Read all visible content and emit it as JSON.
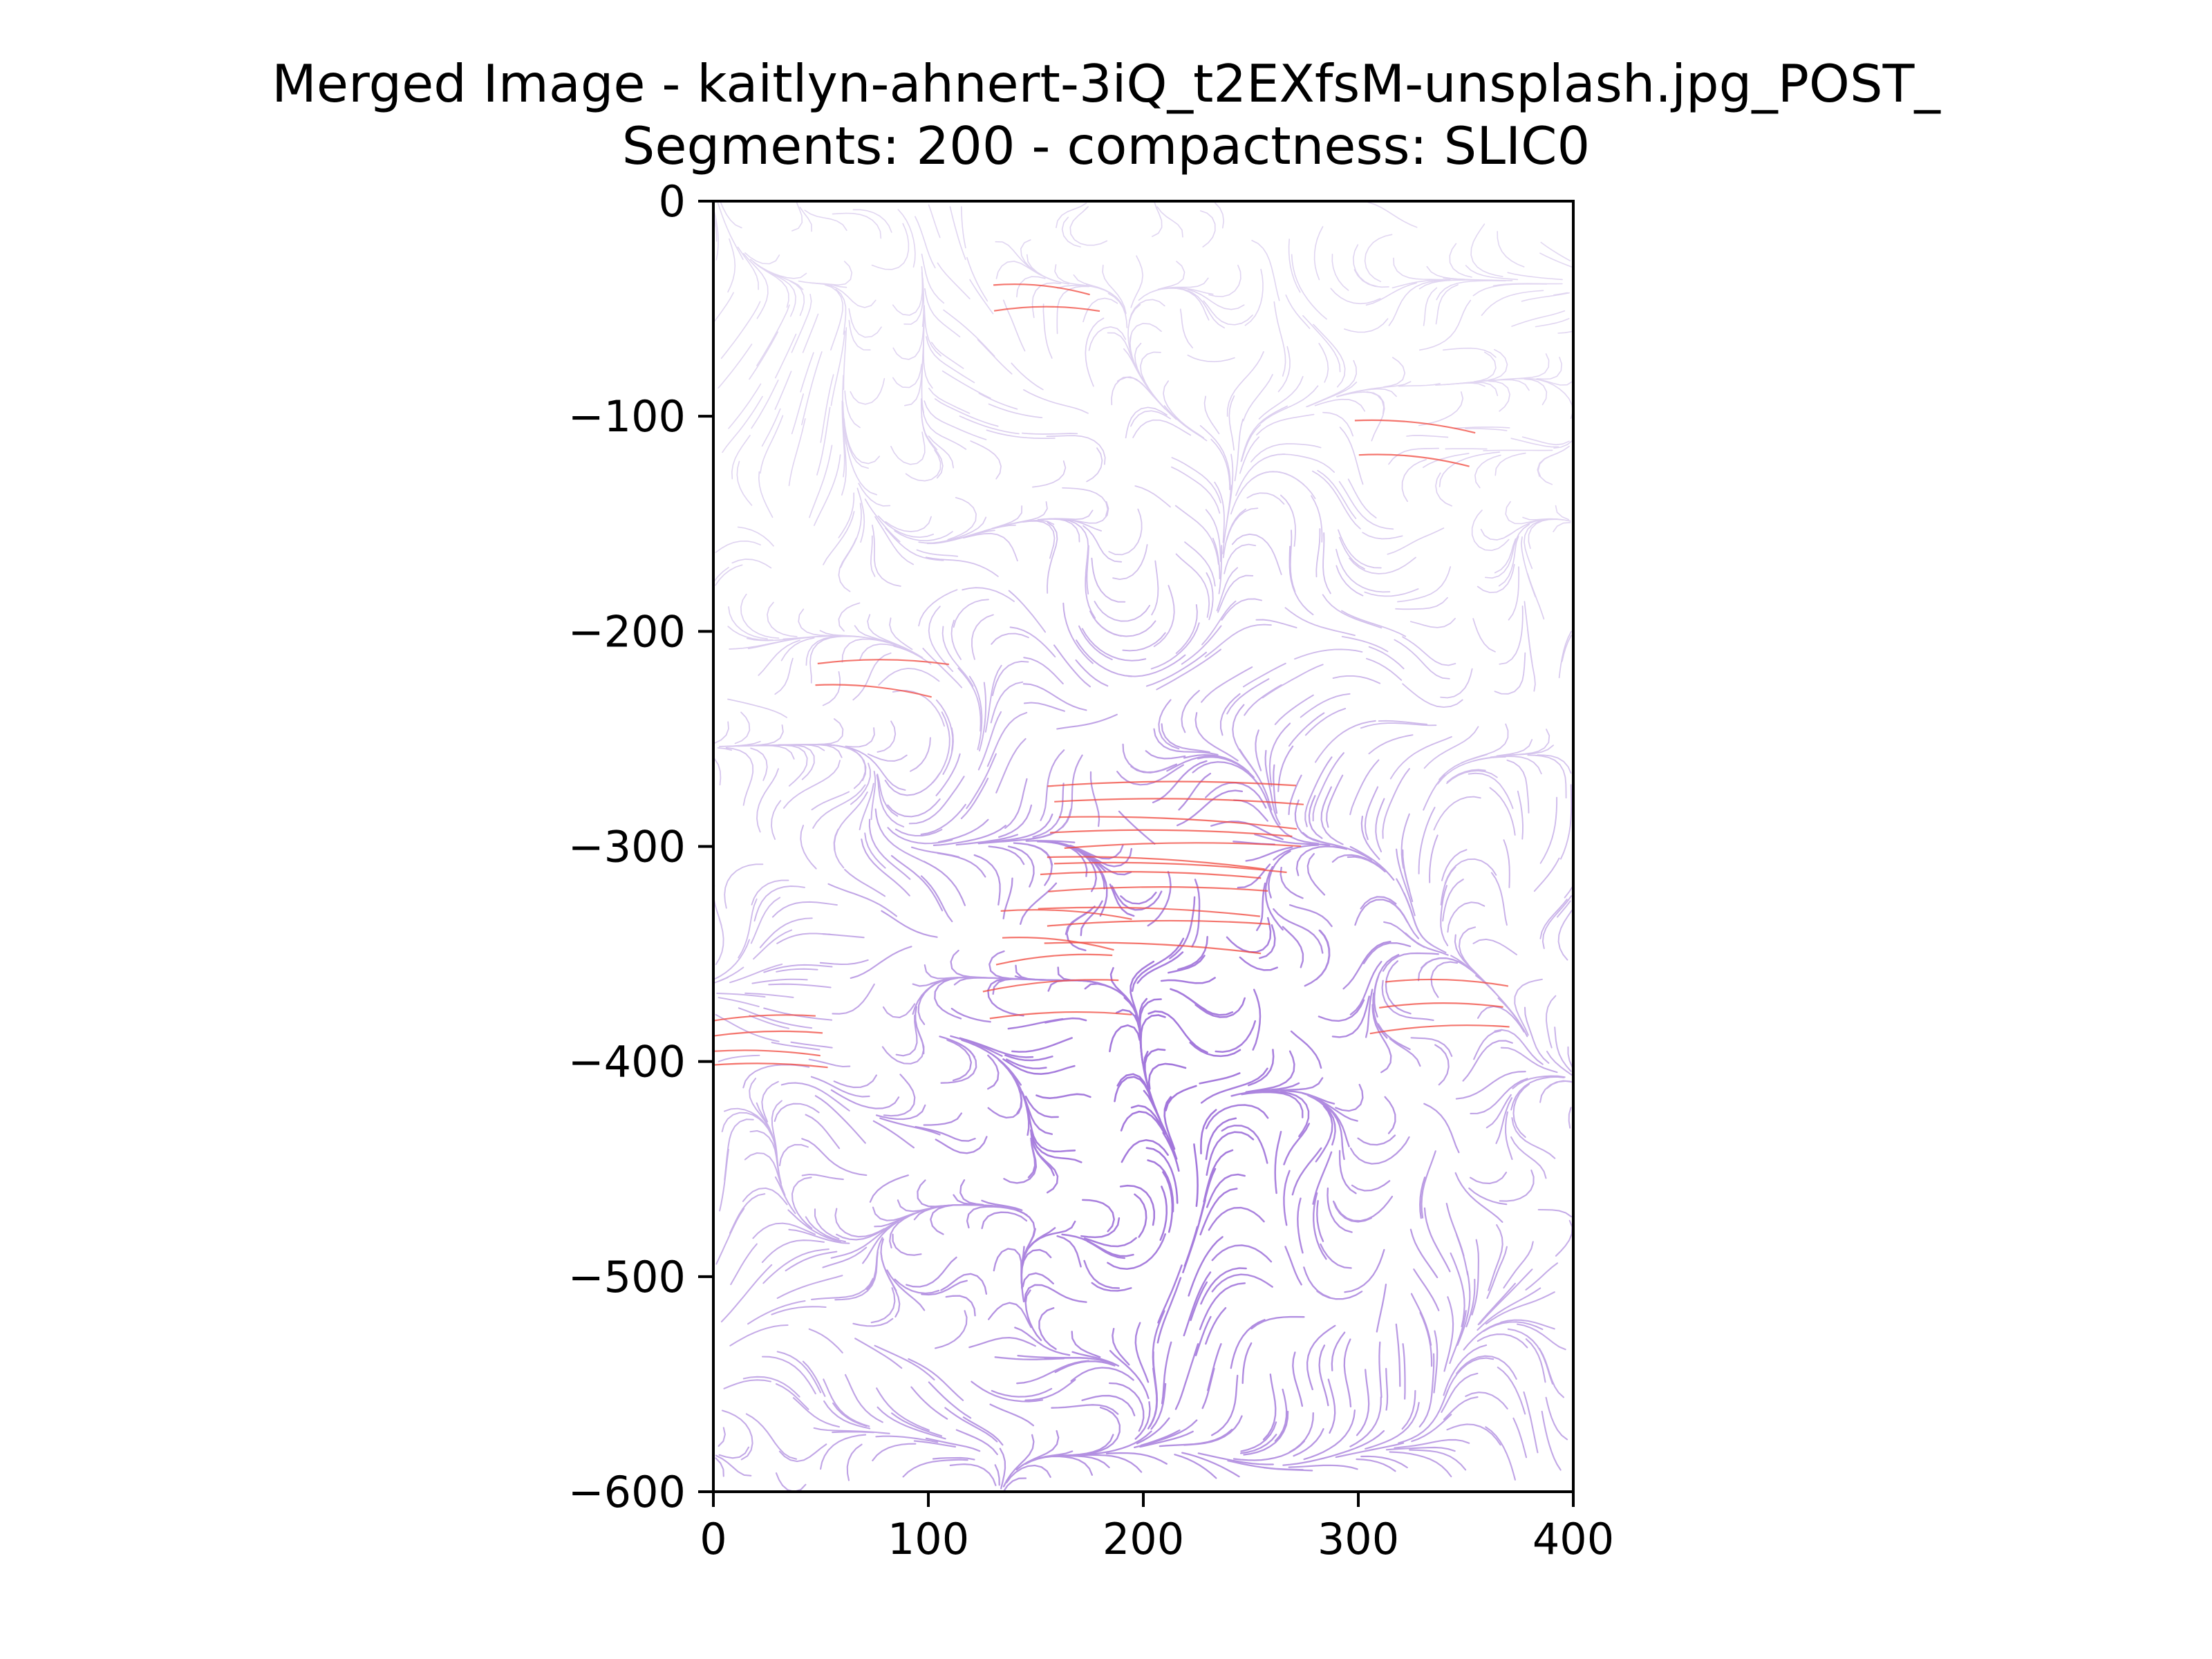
{
  "chart_data": {
    "type": "streamplot",
    "title_line1": "Merged Image - kaitlyn-ahnert-3iQ_t2EXfsM-unsplash.jpg_POST_",
    "title_line2": "Segments: 200 - compactness: SLIC0",
    "xlabel": "",
    "ylabel": "",
    "xlim": [
      0,
      400
    ],
    "ylim": [
      -600,
      0
    ],
    "x_ticks": [
      0,
      100,
      200,
      300,
      400
    ],
    "x_tick_labels": [
      "0",
      "100",
      "200",
      "300",
      "400"
    ],
    "y_ticks": [
      0,
      -100,
      -200,
      -300,
      -400,
      -500,
      -600
    ],
    "y_tick_labels": [
      "0",
      "−100",
      "−200",
      "−300",
      "−400",
      "−500",
      "−600"
    ],
    "colors": {
      "low": "#ece7f5",
      "mid": "#9b6fd6",
      "high": "#f0473c",
      "axis": "#000000"
    },
    "grid": false,
    "legend": "none"
  }
}
